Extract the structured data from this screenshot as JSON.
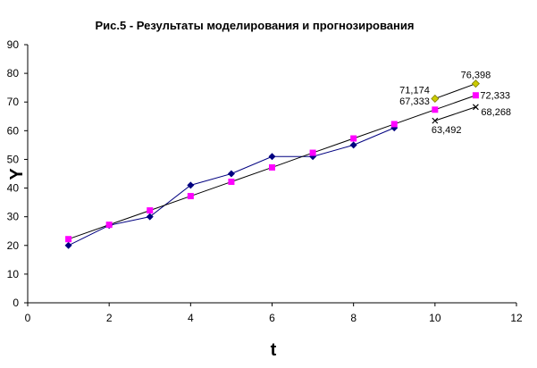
{
  "chart_data": {
    "type": "line",
    "title": "Рис.5 - Результаты моделирования и прогнозирования",
    "xlabel": "t",
    "ylabel": "Y",
    "xlim": [
      0,
      12
    ],
    "ylim": [
      0,
      90
    ],
    "xticks": [
      "0",
      "2",
      "4",
      "6",
      "8",
      "10",
      "12"
    ],
    "yticks": [
      "0",
      "10",
      "20",
      "30",
      "40",
      "50",
      "60",
      "70",
      "80",
      "90"
    ],
    "grid": false,
    "legend": "none",
    "series": [
      {
        "x": [
          1,
          2,
          3,
          4,
          5,
          6,
          7,
          8,
          9
        ],
        "y": [
          20,
          27,
          30,
          41,
          45,
          51,
          51,
          55,
          61
        ],
        "color": "#000080",
        "marker": "diamond"
      },
      {
        "x": [
          1,
          2,
          3,
          4,
          5,
          6,
          7,
          8,
          9,
          10,
          11
        ],
        "y": [
          22.2,
          27.2,
          32.2,
          37.2,
          42.2,
          47.2,
          52.3,
          57.3,
          62.3,
          67.333,
          72.333
        ],
        "color": "#000000",
        "marker": "square",
        "marker_color": "#ff00ff"
      },
      {
        "x": [
          10,
          11
        ],
        "y": [
          71.174,
          76.398
        ],
        "color": "#000000",
        "marker": "diamond-open",
        "marker_color": "#cccc00"
      },
      {
        "x": [
          10,
          11
        ],
        "y": [
          63.492,
          68.268
        ],
        "color": "#000000",
        "marker": "x"
      }
    ],
    "annotations": [
      {
        "text": "76,398",
        "x": 11,
        "y": 76.398,
        "pos": "above"
      },
      {
        "text": "71,174",
        "x": 10,
        "y": 71.174,
        "pos": "left-above"
      },
      {
        "text": "72,333",
        "x": 11,
        "y": 72.333,
        "pos": "right"
      },
      {
        "text": "67,333",
        "x": 10,
        "y": 67.333,
        "pos": "left-above"
      },
      {
        "text": "68,268",
        "x": 11,
        "y": 68.268,
        "pos": "right-below"
      },
      {
        "text": "63,492",
        "x": 10,
        "y": 63.492,
        "pos": "below"
      }
    ]
  }
}
